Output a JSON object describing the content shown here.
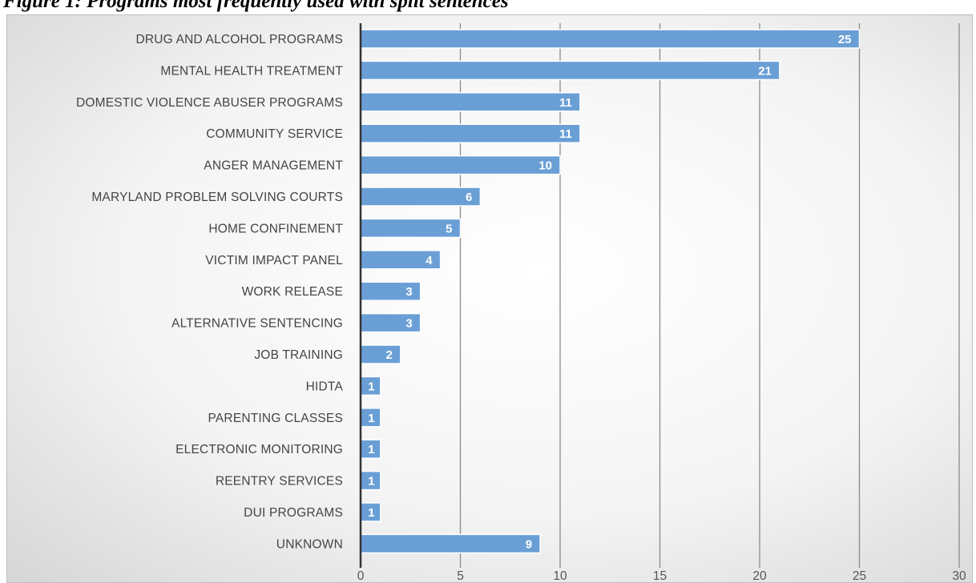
{
  "figure": {
    "title": "Figure 1: Programs most frequently used with split sentences"
  },
  "chart_data": {
    "type": "bar",
    "orientation": "horizontal",
    "title": "",
    "xlabel": "",
    "ylabel": "",
    "categories": [
      "DRUG AND ALCOHOL PROGRAMS",
      "MENTAL HEALTH TREATMENT",
      "DOMESTIC VIOLENCE ABUSER PROGRAMS",
      "COMMUNITY SERVICE",
      "ANGER MANAGEMENT",
      "MARYLAND PROBLEM SOLVING COURTS",
      "HOME CONFINEMENT",
      "VICTIM IMPACT PANEL",
      "WORK RELEASE",
      "ALTERNATIVE SENTENCING",
      "JOB TRAINING",
      "HIDTA",
      "PARENTING CLASSES",
      "ELECTRONIC MONITORING",
      "REENTRY SERVICES",
      "DUI PROGRAMS",
      "UNKNOWN"
    ],
    "values": [
      25,
      21,
      11,
      11,
      10,
      6,
      5,
      4,
      3,
      3,
      2,
      1,
      1,
      1,
      1,
      1,
      9
    ],
    "xlim": [
      0,
      30
    ],
    "xticks": [
      0,
      5,
      10,
      15,
      20,
      25,
      30
    ],
    "grid": "vertical",
    "legend": "none",
    "data_labels": true,
    "colors": {
      "bar": "#6a9fd6",
      "bar_edge": "#ffffff",
      "grid": "#8a8a8a",
      "axis": "#333333"
    }
  }
}
